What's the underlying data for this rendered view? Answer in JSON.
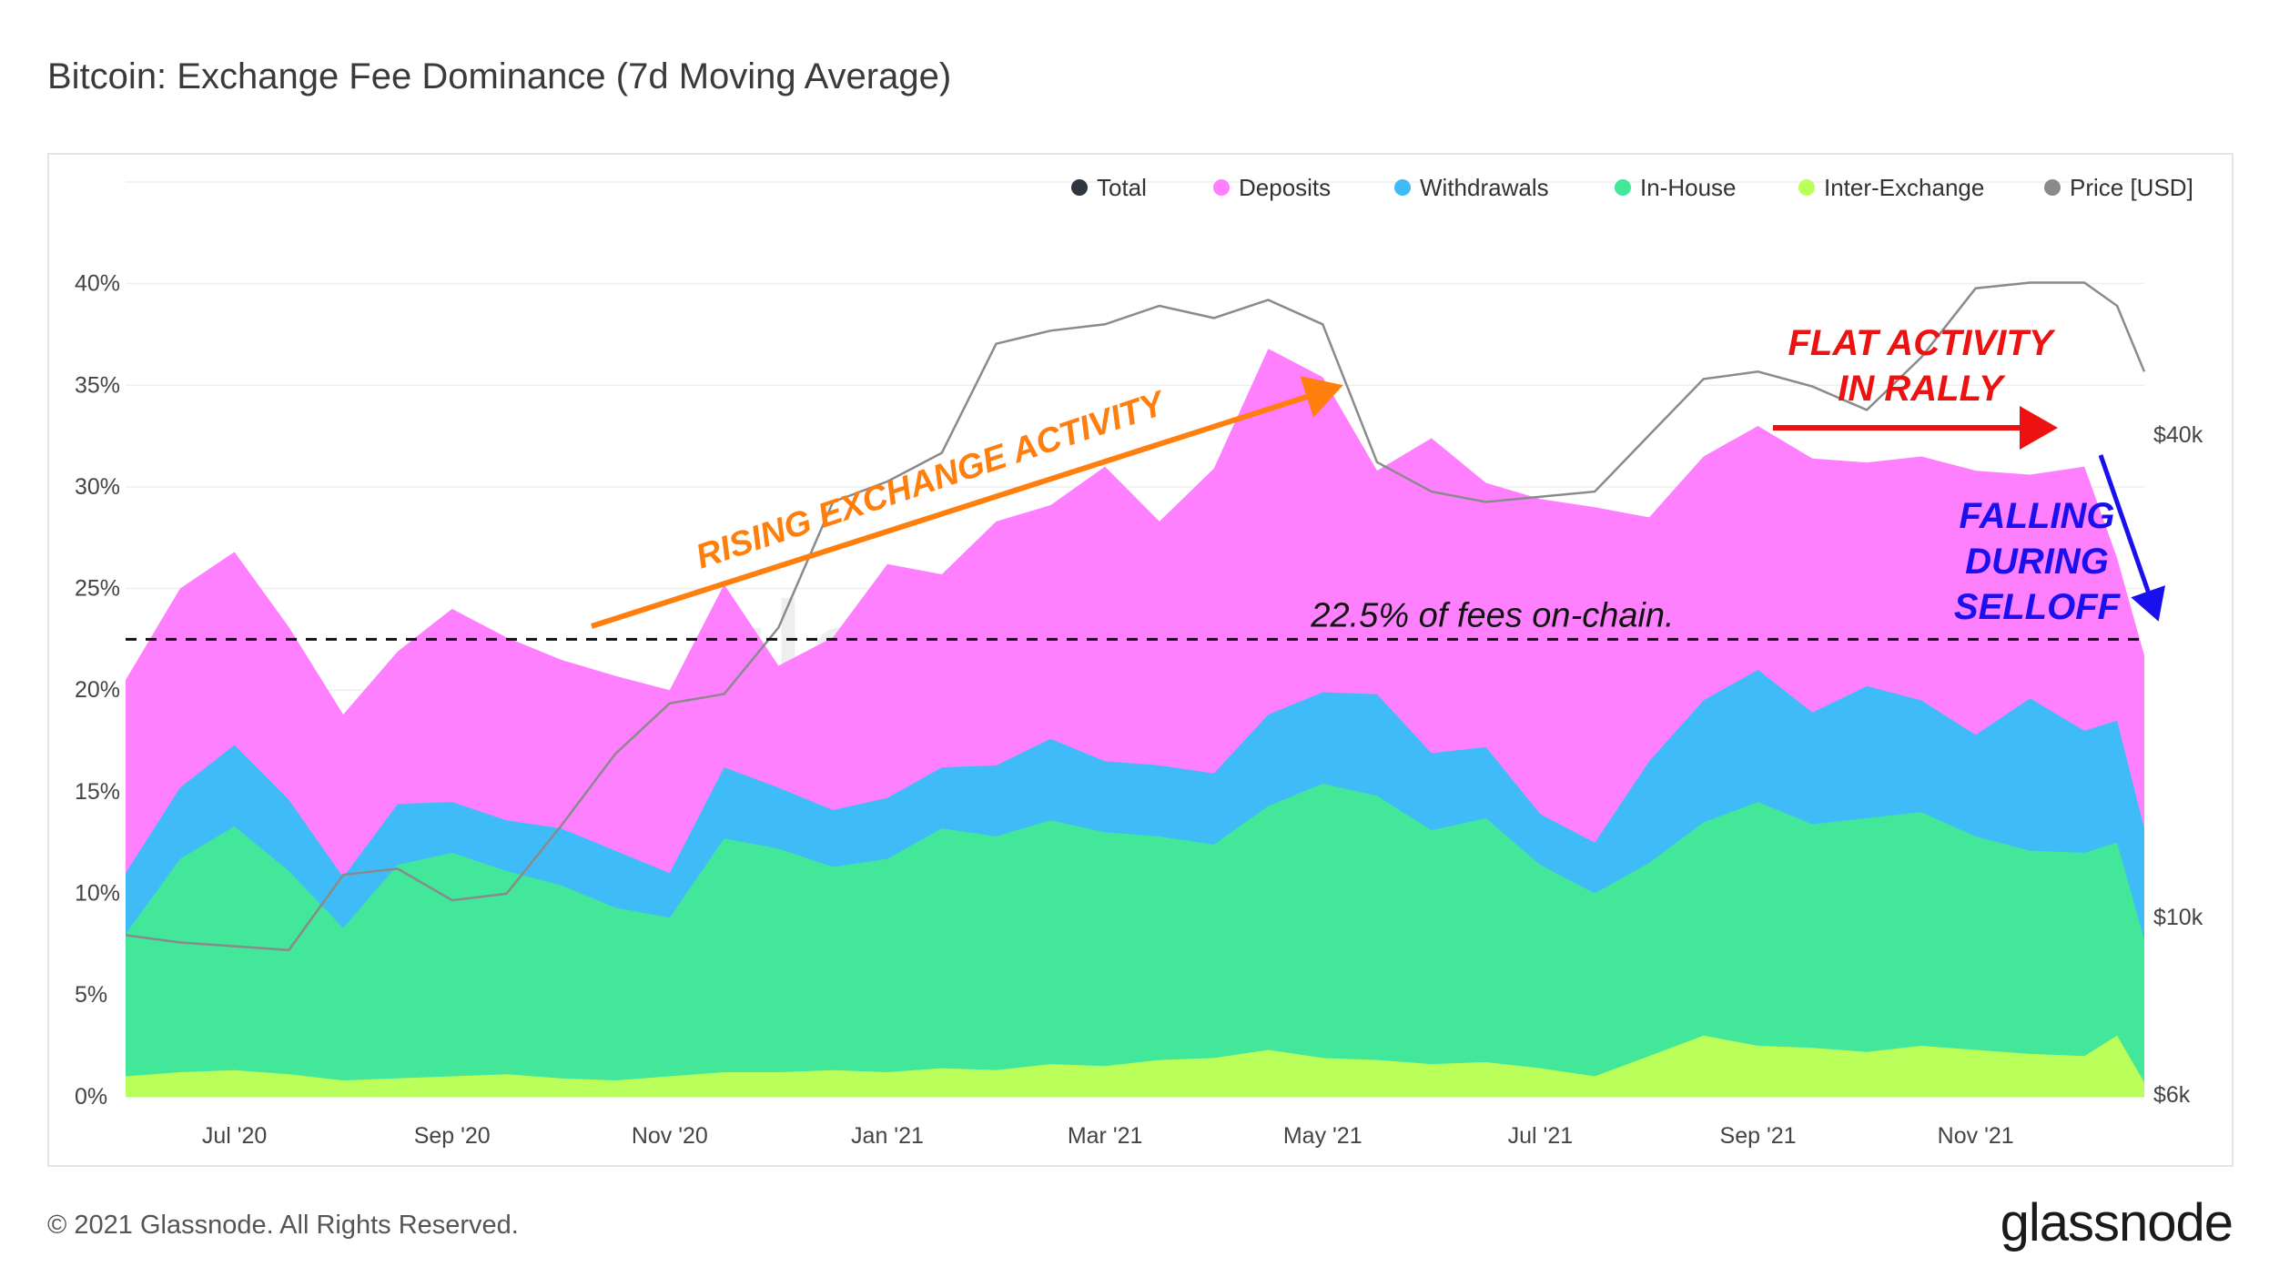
{
  "title": "Bitcoin: Exchange Fee Dominance (7d Moving Average)",
  "footer": "© 2021 Glassnode. All Rights Reserved.",
  "brand": "glassnode",
  "watermark": "glassnode",
  "colors": {
    "total": "#2f3640",
    "deposits": "#ff80ff",
    "withdrawals": "#3fbcf7",
    "in_house": "#42e79a",
    "inter_exchange": "#bbff5a",
    "price": "#8a8a8a",
    "rising": "#ff7f0e",
    "flat": "#ee1111",
    "falling": "#1a10ee"
  },
  "legend": [
    {
      "label": "Total",
      "color": "#2f3640"
    },
    {
      "label": "Deposits",
      "color": "#ff80ff"
    },
    {
      "label": "Withdrawals",
      "color": "#3fbcf7"
    },
    {
      "label": "In-House",
      "color": "#42e79a"
    },
    {
      "label": "Inter-Exchange",
      "color": "#bbff5a"
    },
    {
      "label": "Price [USD]",
      "color": "#8a8a8a"
    }
  ],
  "annotations": {
    "rising": "RISING EXCHANGE ACTIVITY",
    "flat_line1": "FLAT ACTIVITY",
    "flat_line2": "IN RALLY",
    "falling_line1": "FALLING",
    "falling_line2": "DURING",
    "falling_line3": "SELLOFF",
    "threshold_label": "22.5% of fees on-chain."
  },
  "chart_data": {
    "type": "area",
    "title": "Bitcoin: Exchange Fee Dominance (7d Moving Average)",
    "x_ticks": [
      "Jul '20",
      "Sep '20",
      "Nov '20",
      "Jan '21",
      "Mar '21",
      "May '21",
      "Jul '21",
      "Sep '21",
      "Nov '21"
    ],
    "x_tick_months": [
      1,
      3,
      5,
      7,
      9,
      11,
      13,
      15,
      17
    ],
    "x_range_months": [
      0.0,
      18.55
    ],
    "y_ticks": [
      "0%",
      "5%",
      "10%",
      "15%",
      "20%",
      "25%",
      "30%",
      "35%",
      "40%"
    ],
    "y_range": [
      -0.5,
      45
    ],
    "y2_ticks": [
      "$6k",
      "$10k",
      "$40k"
    ],
    "y2_tick_values": [
      6000,
      10000,
      40000
    ],
    "y2_scale": "log",
    "threshold": 22.5,
    "x_months": [
      0.0,
      0.5,
      1.0,
      1.5,
      2.0,
      2.5,
      3.0,
      3.5,
      4.0,
      4.5,
      5.0,
      5.5,
      6.0,
      6.5,
      7.0,
      7.5,
      8.0,
      8.5,
      9.0,
      9.5,
      10.0,
      10.5,
      11.0,
      11.5,
      12.0,
      12.5,
      13.0,
      13.5,
      14.0,
      14.5,
      15.0,
      15.5,
      16.0,
      16.5,
      17.0,
      17.5,
      18.0,
      18.3,
      18.55
    ],
    "series": [
      {
        "name": "Inter-Exchange",
        "values": [
          1.0,
          1.2,
          1.3,
          1.1,
          0.8,
          0.9,
          1.0,
          1.1,
          0.9,
          0.8,
          1.0,
          1.2,
          1.2,
          1.3,
          1.2,
          1.4,
          1.3,
          1.6,
          1.5,
          1.8,
          1.9,
          2.3,
          1.9,
          1.8,
          1.6,
          1.7,
          1.4,
          1.0,
          2.0,
          3.0,
          2.5,
          2.4,
          2.2,
          2.5,
          2.3,
          2.1,
          2.0,
          3.0,
          0.7
        ]
      },
      {
        "name": "In-House",
        "values": [
          7.0,
          10.5,
          12.0,
          10.0,
          7.5,
          10.5,
          11.0,
          10.0,
          9.5,
          8.5,
          7.8,
          11.5,
          11.0,
          10.0,
          10.5,
          11.8,
          11.5,
          12.0,
          11.5,
          11.0,
          10.5,
          12.0,
          13.5,
          13.0,
          11.5,
          12.0,
          10.0,
          9.0,
          9.5,
          10.5,
          12.0,
          11.0,
          11.5,
          11.5,
          10.5,
          10.0,
          10.0,
          9.5,
          7.0
        ]
      },
      {
        "name": "Withdrawals",
        "values": [
          3.0,
          3.5,
          4.0,
          3.5,
          2.5,
          3.0,
          2.5,
          2.5,
          2.8,
          2.8,
          2.2,
          3.5,
          3.0,
          2.8,
          3.0,
          3.0,
          3.5,
          4.0,
          3.5,
          3.5,
          3.5,
          4.5,
          4.5,
          5.0,
          3.8,
          3.5,
          2.5,
          2.5,
          5.0,
          6.0,
          6.5,
          5.5,
          6.5,
          5.5,
          5.0,
          7.5,
          6.0,
          6.0,
          5.5
        ]
      },
      {
        "name": "Deposits",
        "values": [
          9.5,
          9.8,
          9.5,
          8.5,
          8.0,
          7.5,
          9.5,
          9.0,
          8.3,
          8.6,
          9.0,
          9.0,
          6.0,
          8.5,
          11.5,
          9.5,
          12.0,
          11.5,
          14.5,
          12.0,
          15.0,
          18.0,
          15.5,
          11.0,
          15.5,
          13.0,
          15.5,
          16.5,
          12.0,
          12.0,
          12.0,
          12.5,
          11.0,
          12.0,
          13.0,
          11.0,
          13.0,
          8.0,
          8.5
        ]
      },
      {
        "name": "Price [USD]",
        "scale": "log",
        "values": [
          9500,
          9300,
          9200,
          9100,
          11300,
          11500,
          10500,
          10700,
          13000,
          16000,
          18500,
          19000,
          23000,
          33000,
          35000,
          38000,
          52000,
          54000,
          55000,
          58000,
          56000,
          59000,
          55000,
          37000,
          34000,
          33000,
          33500,
          34000,
          40000,
          47000,
          48000,
          46000,
          43000,
          50000,
          61000,
          62000,
          62000,
          58000,
          48000
        ]
      }
    ]
  }
}
